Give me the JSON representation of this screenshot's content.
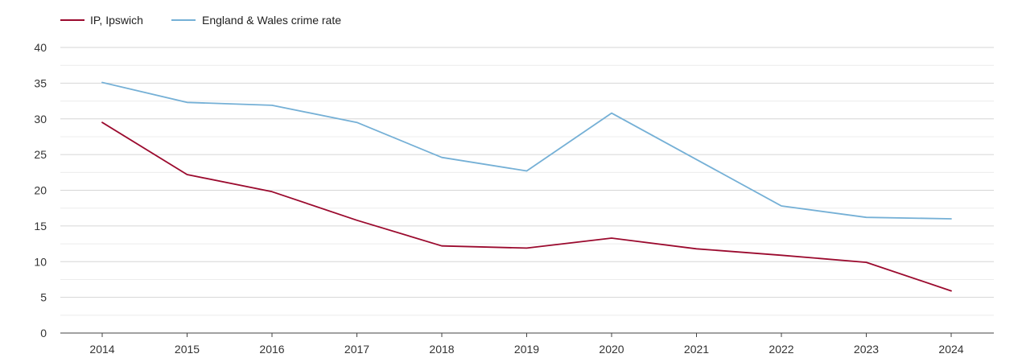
{
  "chart_data": {
    "type": "line",
    "title": "",
    "xlabel": "",
    "ylabel": "",
    "x": [
      "2014",
      "2015",
      "2016",
      "2017",
      "2018",
      "2019",
      "2020",
      "2021",
      "2022",
      "2023",
      "2024"
    ],
    "ylim": [
      0,
      40
    ],
    "yticks": [
      0,
      5,
      10,
      15,
      20,
      25,
      30,
      35,
      40
    ],
    "grid": true,
    "legend_position": "top-left",
    "series": [
      {
        "name": "IP, Ipswich",
        "color": "#9b0a2e",
        "values": [
          29.5,
          22.2,
          19.8,
          15.8,
          12.2,
          11.9,
          13.3,
          11.8,
          10.9,
          9.9,
          5.9
        ]
      },
      {
        "name": "England & Wales crime rate",
        "color": "#75b0d6",
        "values": [
          35.1,
          32.3,
          31.9,
          29.5,
          24.6,
          22.7,
          30.8,
          24.3,
          17.8,
          16.2,
          16.0
        ]
      }
    ]
  }
}
